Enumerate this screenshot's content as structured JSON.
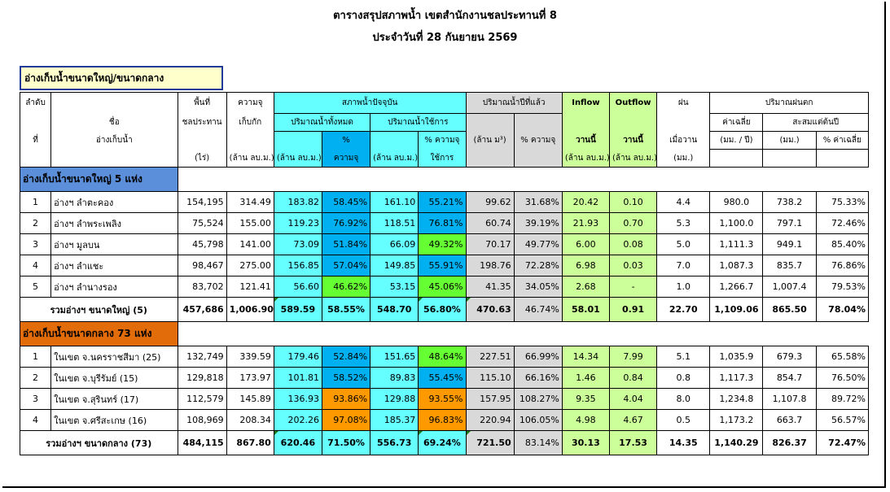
{
  "title": "ตารางสรุปสภาพน้ำ เขตสำนักงานชลประทานที่ 8",
  "subtitle": "ประจำวันที่ 28 กันยายน 2569",
  "section_box": "อ่างเก็บน้ำขนาดใหญ่/ขนาดกลาง",
  "headers": {
    "order_1": "ลำดับ",
    "order_2": "ที่",
    "name_1": "ชื่อ",
    "name_2": "อ่างเก็บน้ำ",
    "area_1": "พื้นที่",
    "area_2": "ชลประทาน",
    "area_3": "(ไร่)",
    "cap_1": "ความจุ",
    "cap_2": "เก็บกัก",
    "cap_3": "(ล้าน ลบ.ม.)",
    "current": "สภาพน้ำปัจจุบัน",
    "total_vol": "ปริมาณน้ำทั้งหมด",
    "usable_vol": "ปริมาณน้ำใช้การ",
    "mcm": "(ล้าน ลบ.ม.)",
    "pct_cap_1": "%",
    "pct_cap_2": "ความจุ",
    "pct_use_1": "% ความจุ",
    "pct_use_2": "ใช้การ",
    "last_year": "ปริมาณน้ำปีที่แล้ว",
    "ly_mcm": "(ล้าน ม³)",
    "ly_pct": "% ความจุ",
    "inflow": "Inflow",
    "outflow": "Outflow",
    "today": "วานนี้",
    "rain": "ฝน",
    "rain_2": "เมื่อวาน",
    "mm": "(มม.)",
    "rainfall": "ปริมาณฝนตก",
    "avg": "ค่าเฉลี่ย",
    "avg_unit": "(มม. / ปี)",
    "accum": "สะสมแต่ต้นปี",
    "pct_avg": "% ค่าเฉลี่ย"
  },
  "large_section": "อ่างเก็บน้ำขนาดใหญ่ 5 แห่ง",
  "large_rows": [
    {
      "no": "1",
      "name": "อ่างฯ ลำตะคอง",
      "area": "154,195",
      "cap": "314.49",
      "vol": "183.82",
      "pct": "58.45%",
      "use": "161.10",
      "upct": "55.21%",
      "ly": "99.62",
      "lypct": "31.68%",
      "inflow": "20.42",
      "outflow": "0.10",
      "rain": "4.4",
      "avg": "980.0",
      "acc": "738.2",
      "pavg": "75.33%"
    },
    {
      "no": "2",
      "name": "อ่างฯ ลำพระเพลิง",
      "area": "75,524",
      "cap": "155.00",
      "vol": "119.23",
      "pct": "76.92%",
      "use": "118.51",
      "upct": "76.81%",
      "ly": "60.74",
      "lypct": "39.19%",
      "inflow": "21.93",
      "outflow": "0.70",
      "rain": "5.3",
      "avg": "1,100.0",
      "acc": "797.1",
      "pavg": "72.46%"
    },
    {
      "no": "3",
      "name": "อ่างฯ มูลบน",
      "area": "45,798",
      "cap": "141.00",
      "vol": "73.09",
      "pct": "51.84%",
      "use": "66.09",
      "upct": "49.32%",
      "ly": "70.17",
      "lypct": "49.77%",
      "inflow": "6.00",
      "outflow": "0.08",
      "rain": "5.0",
      "avg": "1,111.3",
      "acc": "949.1",
      "pavg": "85.40%"
    },
    {
      "no": "4",
      "name": "อ่างฯ ลำแชะ",
      "area": "98,467",
      "cap": "275.00",
      "vol": "156.85",
      "pct": "57.04%",
      "use": "149.85",
      "upct": "55.91%",
      "ly": "198.76",
      "lypct": "72.28%",
      "inflow": "6.98",
      "outflow": "0.03",
      "rain": "7.0",
      "avg": "1,087.3",
      "acc": "835.7",
      "pavg": "76.86%"
    },
    {
      "no": "5",
      "name": "อ่างฯ ลำนางรอง",
      "area": "83,702",
      "cap": "121.41",
      "vol": "56.60",
      "pct": "46.62%",
      "use": "53.15",
      "upct": "45.06%",
      "ly": "41.35",
      "lypct": "34.05%",
      "inflow": "2.68",
      "outflow": "-",
      "rain": "1.0",
      "avg": "1,266.7",
      "acc": "1,007.4",
      "pavg": "79.53%"
    }
  ],
  "large_total": {
    "label": "รวมอ่างฯ ขนาดใหญ่ (5)",
    "area": "457,686",
    "cap": "1,006.90",
    "vol": "589.59",
    "pct": "58.55%",
    "use": "548.70",
    "upct": "56.80%",
    "ly": "470.63",
    "lypct": "46.74%",
    "inflow": "58.01",
    "outflow": "0.91",
    "rain": "22.70",
    "avg": "1,109.06",
    "acc": "865.50",
    "pavg": "78.04%"
  },
  "medium_section": "อ่างเก็บน้ำขนาดกลาง 73 แห่ง",
  "medium_rows": [
    {
      "no": "1",
      "name": "ในเขต จ.นครราชสีมา (25)",
      "area": "132,749",
      "cap": "339.59",
      "vol": "179.46",
      "pct": "52.84%",
      "use": "151.65",
      "upct": "48.64%",
      "ly": "227.51",
      "lypct": "66.99%",
      "inflow": "14.34",
      "outflow": "7.99",
      "rain": "5.1",
      "avg": "1,035.9",
      "acc": "679.3",
      "pavg": "65.58%"
    },
    {
      "no": "2",
      "name": "ในเขต จ.บุรีรัมย์ (15)",
      "area": "129,818",
      "cap": "173.97",
      "vol": "101.81",
      "pct": "58.52%",
      "use": "89.83",
      "upct": "55.45%",
      "ly": "115.10",
      "lypct": "66.16%",
      "inflow": "1.46",
      "outflow": "0.84",
      "rain": "0.8",
      "avg": "1,117.3",
      "acc": "854.7",
      "pavg": "76.50%"
    },
    {
      "no": "3",
      "name": "ในเขต จ.สุรินทร์ (17)",
      "area": "112,579",
      "cap": "145.89",
      "vol": "136.93",
      "pct": "93.86%",
      "use": "129.88",
      "upct": "93.55%",
      "ly": "157.95",
      "lypct": "108.27%",
      "inflow": "9.35",
      "outflow": "4.04",
      "rain": "8.0",
      "avg": "1,234.8",
      "acc": "1,107.8",
      "pavg": "89.72%"
    },
    {
      "no": "4",
      "name": "ในเขต จ.ศรีสะเกษ (16)",
      "area": "108,969",
      "cap": "208.34",
      "vol": "202.26",
      "pct": "97.08%",
      "use": "185.37",
      "upct": "96.83%",
      "ly": "220.94",
      "lypct": "106.05%",
      "inflow": "4.98",
      "outflow": "4.67",
      "rain": "0.5",
      "avg": "1,173.2",
      "acc": "663.7",
      "pavg": "56.57%"
    }
  ],
  "medium_total": {
    "label": "รวมอ่างฯ ขนาดกลาง (73)",
    "area": "484,115",
    "cap": "867.80",
    "vol": "620.46",
    "pct": "71.50%",
    "use": "556.73",
    "upct": "69.24%",
    "ly": "721.50",
    "lypct": "83.14%",
    "inflow": "30.13",
    "outflow": "17.53",
    "rain": "14.35",
    "avg": "1,140.29",
    "acc": "826.37",
    "pavg": "72.47%"
  },
  "colors": {
    "cyan": "#66ffff",
    "blue": "#00b0f0",
    "green": "#66ff33",
    "orange": "#ff9900",
    "gray": "#d9d9d9",
    "light_green": "#ccff99",
    "section_large": "#5b8fd9",
    "section_medium": "#e26b0a"
  },
  "cell_colors": {
    "large_pct": [
      "blue",
      "blue",
      "blue",
      "blue",
      "green"
    ],
    "large_upct": [
      "blue",
      "blue",
      "green",
      "blue",
      "green"
    ],
    "medium_pct": [
      "blue",
      "blue",
      "orange",
      "orange"
    ],
    "medium_upct": [
      "green",
      "blue",
      "orange",
      "orange"
    ]
  }
}
